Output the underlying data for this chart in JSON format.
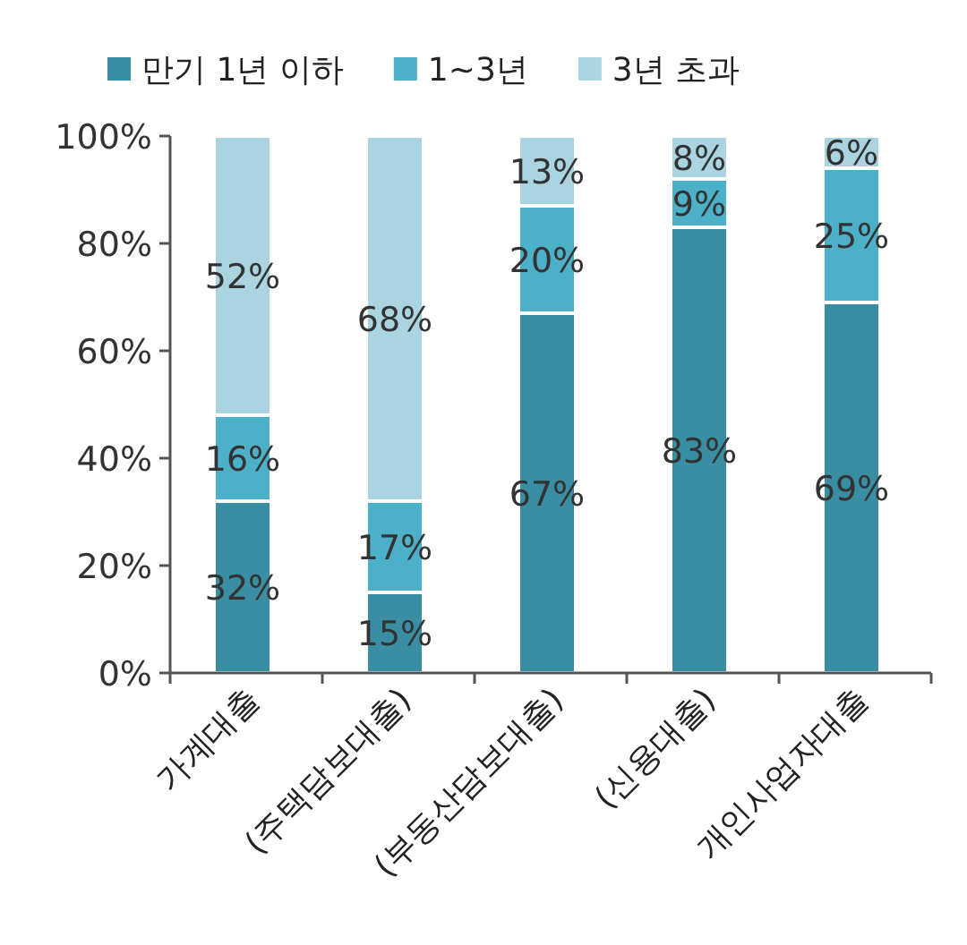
{
  "chart_data": {
    "type": "bar",
    "stacked": true,
    "categories": [
      "가계대출",
      "(주택담보대출)",
      "(부동산담보대출)",
      "(신용대출)",
      "개인사업자대출"
    ],
    "series": [
      {
        "name": "만기 1년 이하",
        "color": "#3a8ea3",
        "values": [
          32,
          15,
          67,
          83,
          69
        ],
        "value_labels": [
          "32%",
          "15%",
          "67%",
          "83%",
          "69%"
        ]
      },
      {
        "name": "1~3년",
        "color": "#4db0c9",
        "values": [
          16,
          17,
          20,
          9,
          25
        ],
        "value_labels": [
          "16%",
          "17%",
          "20%",
          "9%",
          "25%"
        ]
      },
      {
        "name": "3년 초과",
        "color": "#a9d4e0",
        "values": [
          52,
          68,
          13,
          8,
          6
        ],
        "value_labels": [
          "52%",
          "68%",
          "13%",
          "8%",
          "6%"
        ]
      }
    ],
    "ylim": [
      0,
      100
    ],
    "yticks": [
      {
        "value": 0,
        "label": "0%"
      },
      {
        "value": 20,
        "label": "20%"
      },
      {
        "value": 40,
        "label": "40%"
      },
      {
        "value": 60,
        "label": "60%"
      },
      {
        "value": 80,
        "label": "80%"
      },
      {
        "value": 100,
        "label": "100%"
      }
    ],
    "legend": "top",
    "grid": false
  }
}
